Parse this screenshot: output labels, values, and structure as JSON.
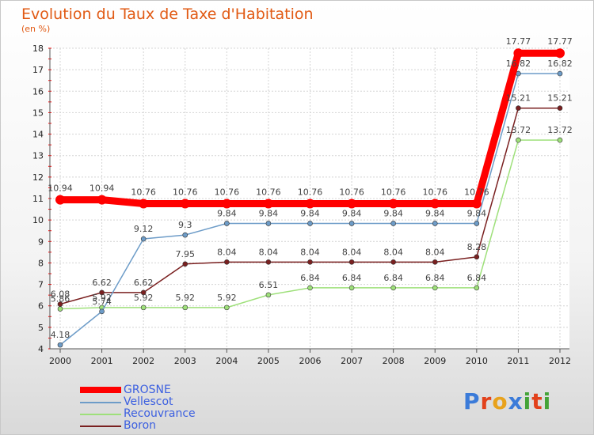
{
  "title": "Evolution du Taux de Taxe d'Habitation",
  "subtitle": "(en %)",
  "logo": {
    "letters": [
      "P",
      "r",
      "o",
      "x",
      "i",
      "t",
      "i"
    ],
    "colors": [
      "#3b7bd9",
      "#e2411b",
      "#e8a21c",
      "#3b7bd9",
      "#44a338",
      "#e2411b",
      "#44a338"
    ]
  },
  "chart_data": {
    "type": "line",
    "categories": [
      "2000",
      "2001",
      "2002",
      "2003",
      "2004",
      "2005",
      "2006",
      "2007",
      "2008",
      "2009",
      "2010",
      "2011",
      "2012"
    ],
    "ylim": [
      4,
      18
    ],
    "yticks": [
      "4",
      "5",
      "6",
      "7",
      "8",
      "9",
      "10",
      "11",
      "12",
      "13",
      "14",
      "15",
      "16",
      "17",
      "18"
    ],
    "grid": true,
    "legend_position": "bottom-left",
    "series": [
      {
        "name": "GROSNE",
        "color": "#ff0000",
        "values": [
          10.94,
          10.94,
          10.76,
          10.76,
          10.76,
          10.76,
          10.76,
          10.76,
          10.76,
          10.76,
          10.76,
          17.77,
          17.77
        ],
        "labels": [
          "10.94",
          "10.94",
          "10.76",
          "10.76",
          "10.76",
          "10.76",
          "10.76",
          "10.76",
          "10.76",
          "10.76",
          "10.76",
          "17.77",
          "17.77"
        ]
      },
      {
        "name": "Vellescot",
        "color": "#6d9cc8",
        "values": [
          4.18,
          5.74,
          9.12,
          9.3,
          9.84,
          9.84,
          9.84,
          9.84,
          9.84,
          9.84,
          9.84,
          16.82,
          16.82
        ],
        "labels": [
          "4.18",
          "5.74",
          "9.12",
          "9.3",
          "9.84",
          "9.84",
          "9.84",
          "9.84",
          "9.84",
          "9.84",
          "9.84",
          "16.82",
          "16.82"
        ]
      },
      {
        "name": "Recouvrance",
        "color": "#9ee07a",
        "values": [
          5.86,
          5.92,
          5.92,
          5.92,
          5.92,
          6.51,
          6.84,
          6.84,
          6.84,
          6.84,
          6.84,
          13.72,
          13.72
        ],
        "labels": [
          "5.86",
          "5.92",
          "5.92",
          "5.92",
          "5.92",
          "6.51",
          "6.84",
          "6.84",
          "6.84",
          "6.84",
          "6.84",
          "13.72",
          "13.72"
        ]
      },
      {
        "name": "Boron",
        "color": "#7a2020",
        "values": [
          6.08,
          6.62,
          6.62,
          7.95,
          8.04,
          8.04,
          8.04,
          8.04,
          8.04,
          8.04,
          8.28,
          15.21,
          15.21
        ],
        "labels": [
          "6.08",
          "6.62",
          "6.62",
          "7.95",
          "8.04",
          "8.04",
          "8.04",
          "8.04",
          "8.04",
          "8.04",
          "8.28",
          "15.21",
          "15.21"
        ]
      }
    ]
  }
}
